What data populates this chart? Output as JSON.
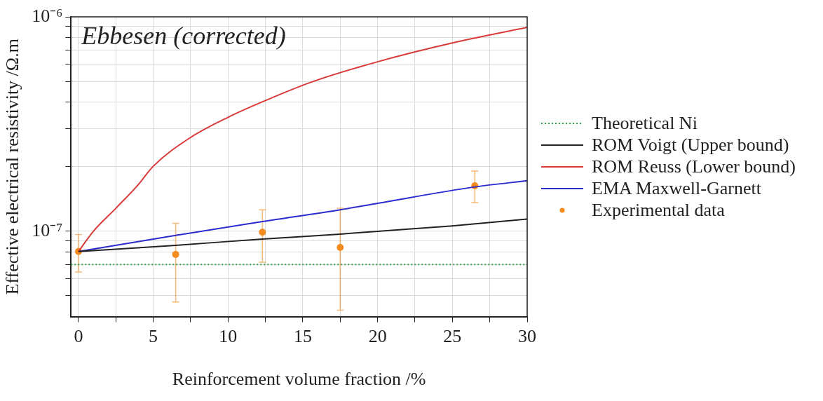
{
  "chart_data": {
    "type": "line",
    "title": "Ebbesen (corrected)",
    "xlabel": "Reinforcement volume fraction /%",
    "ylabel": "Effective electrical resistivity /Ω.m",
    "xlim": [
      -0.5,
      30
    ],
    "xticks": [
      0,
      {
        "value": 2.5,
        "label": null
      },
      5,
      {
        "value": 7.5,
        "label": null
      },
      10,
      {
        "value": 12.5,
        "label": null
      },
      15,
      {
        "value": 17.5,
        "label": null
      },
      20,
      {
        "value": 22.5,
        "label": null
      },
      25,
      {
        "value": 27.5,
        "label": null
      },
      30
    ],
    "ylim": [
      4e-08,
      1e-06
    ],
    "yticks": [
      {
        "value": 5e-08,
        "label": null
      },
      {
        "value": 6e-08,
        "label": null
      },
      {
        "value": 7e-08,
        "label": null
      },
      {
        "value": 8e-08,
        "label": null
      },
      {
        "value": 9e-08,
        "label": null
      },
      {
        "value": 1e-07,
        "label": "10⁻⁷"
      },
      {
        "value": 2e-07,
        "label": null
      },
      {
        "value": 3e-07,
        "label": null
      },
      {
        "value": 4e-07,
        "label": null
      },
      {
        "value": 5e-07,
        "label": null
      },
      {
        "value": 6e-07,
        "label": null
      },
      {
        "value": 7e-07,
        "label": null
      },
      {
        "value": 8e-07,
        "label": null
      },
      {
        "value": 9e-07,
        "label": null
      },
      {
        "value": 1e-06,
        "label": "10⁻⁶"
      }
    ],
    "log": "y",
    "grid": true,
    "legend": "right",
    "marker": "none",
    "line_style": "solid",
    "series": [
      {
        "name": "Theoretical Ni",
        "color": "#2e9e4a",
        "line_style": "dotted",
        "x": [
          -0.5,
          30
        ],
        "values": [
          7e-08,
          7e-08
        ]
      },
      {
        "name": "ROM Voigt (Upper bound)",
        "color": "#222222",
        "x": [
          0,
          6.5,
          12.3,
          17.5,
          20,
          25,
          30
        ],
        "values": [
          8.05e-08,
          8.6e-08,
          9.2e-08,
          9.7e-08,
          1e-07,
          1.06e-07,
          1.14e-07
        ]
      },
      {
        "name": "ROM Reuss (Lower bound)",
        "color": "#d93a3a",
        "x": [
          0,
          1,
          2.5,
          4,
          5,
          7.5,
          10,
          12.5,
          15.6,
          20,
          25,
          30
        ],
        "values": [
          8.05e-08,
          1e-07,
          1.28e-07,
          1.65e-07,
          2.01e-07,
          2.74e-07,
          3.4e-07,
          4.07e-07,
          4.97e-07,
          6.17e-07,
          7.55e-07,
          8.93e-07
        ]
      },
      {
        "name": "EMA Maxwell-Garnett",
        "color": "#2b2bd0",
        "x": [
          0,
          6.5,
          12.3,
          17.5,
          20,
          26.5,
          30
        ],
        "values": [
          8.05e-08,
          9.57e-08,
          1.11e-07,
          1.26e-07,
          1.35e-07,
          1.61e-07,
          1.72e-07
        ]
      },
      {
        "name": "Experimental data",
        "type": "scatter",
        "marker": "circle",
        "color": "#f28c1e",
        "x": [
          0,
          6.5,
          12.3,
          17.5,
          26.5
        ],
        "values": [
          8.05e-08,
          7.8e-08,
          9.9e-08,
          8.4e-08,
          1.63e-07
        ],
        "errors": [
          [
            6.46e-08,
            9.66e-08
          ],
          [
            4.68e-08,
            1.09e-07
          ],
          [
            7.17e-08,
            1.26e-07
          ],
          [
            4.28e-08,
            1.28e-07
          ],
          [
            1.36e-07,
            1.91e-07
          ]
        ]
      }
    ]
  }
}
